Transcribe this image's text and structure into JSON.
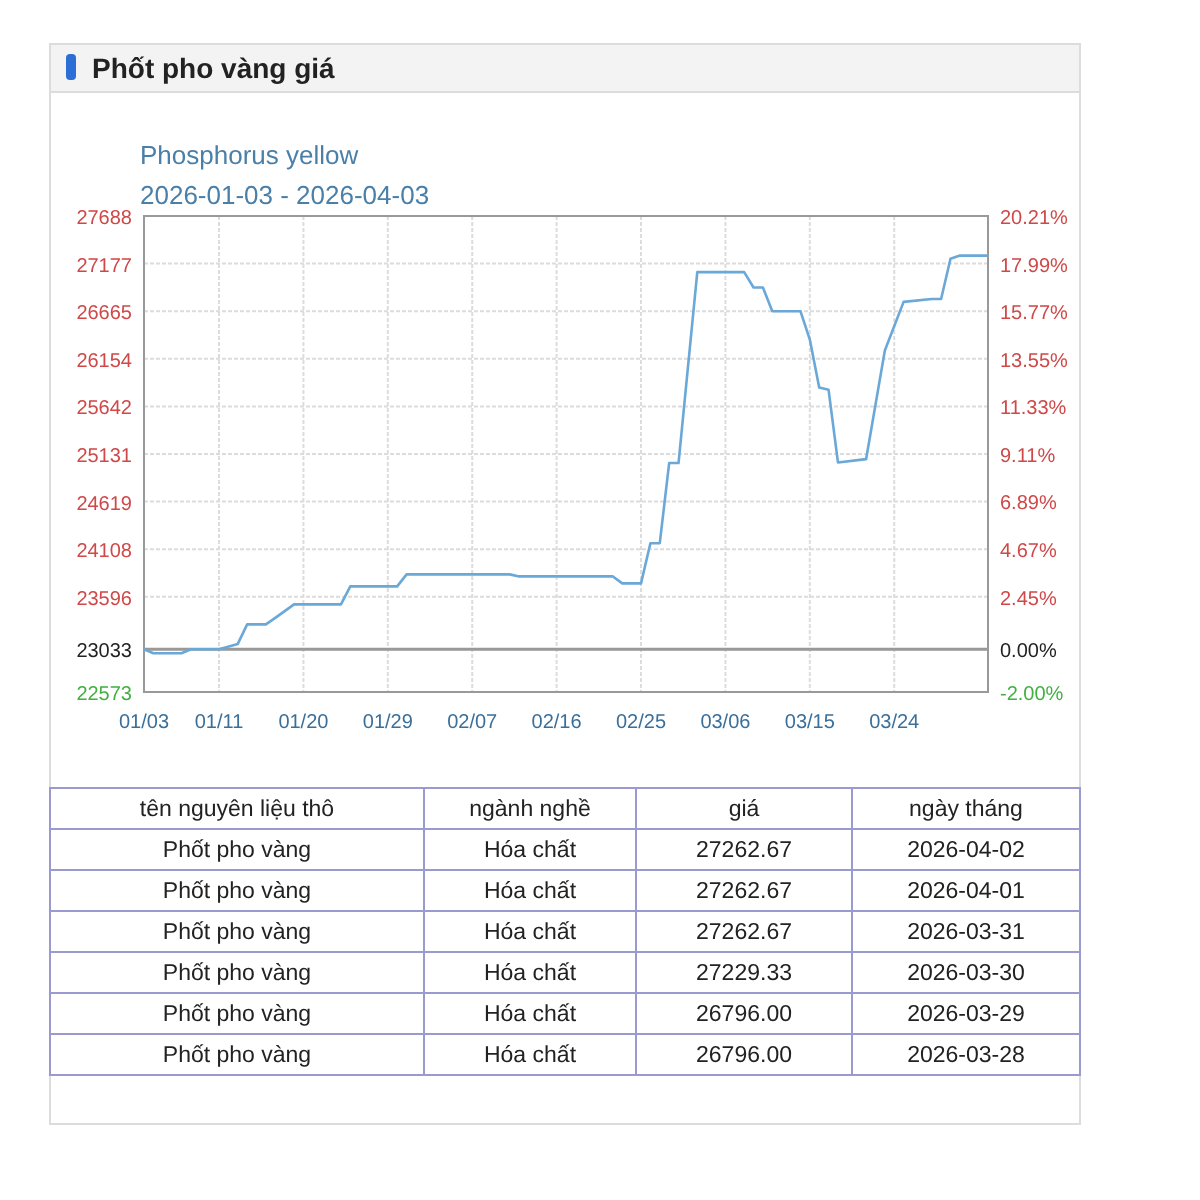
{
  "chart_data": {
    "type": "line",
    "title": "Phốt pho vàng giá",
    "subtitle": "Phosphorus yellow",
    "annotations": [
      "2026-01-03 - 2026-04-03",
      "tên nguyên liệu thô",
      "ngành nghề",
      "giá",
      "ngày tháng",
      "Phốt pho vàng",
      "Hóa chất",
      "27262.67",
      "2026-04-02",
      "Phốt pho vàng",
      "Hóa chất",
      "27262.67",
      "2026-04-01",
      "Phốt pho vàng",
      "Hóa chất",
      "27262.67",
      "2026-03-31",
      "Phốt pho vàng",
      "Hóa chất",
      "27229.33",
      "2026-03-30",
      "Phốt pho vàng",
      "Hóa chất",
      "26796.00",
      "2026-03-29",
      "Phốt pho vàng",
      "Hóa chất",
      "26796.00",
      "2026-03-28"
    ],
    "series": [
      {
        "color": "#6aa8d8",
        "x": [
          "2026-01-03",
          "2026-01-04",
          "2026-01-07",
          "2026-01-08",
          "2026-01-11",
          "2026-01-13",
          "2026-01-14",
          "2026-01-16",
          "2026-01-17",
          "2026-01-19",
          "2026-01-24",
          "2026-01-25",
          "2026-01-30",
          "2026-01-31",
          "2026-02-11",
          "2026-02-12",
          "2026-02-22",
          "2026-02-23",
          "2026-02-25",
          "2026-02-26",
          "2026-02-27",
          "2026-02-28",
          "2026-03-01",
          "2026-03-03",
          "2026-03-08",
          "2026-03-09",
          "2026-03-10",
          "2026-03-11",
          "2026-03-14",
          "2026-03-15",
          "2026-03-16",
          "2026-03-17",
          "2026-03-18",
          "2026-03-21",
          "2026-03-23",
          "2026-03-25",
          "2026-03-28",
          "2026-03-29",
          "2026-03-30",
          "2026-03-31",
          "2026-04-01",
          "2026-04-02",
          "2026-04-03"
        ],
        "values": [
          23033,
          22990,
          22990,
          23033,
          23033,
          23090,
          23300,
          23300,
          23370,
          23515,
          23515,
          23708,
          23708,
          23837,
          23837,
          23815,
          23815,
          23740,
          23740,
          24172,
          24172,
          25033,
          25033,
          27085,
          27085,
          26920,
          26920,
          26665,
          26665,
          26360,
          25845,
          25820,
          25040,
          25075,
          26243,
          26765,
          26796,
          26796,
          27229.33,
          27262.67,
          27262.67,
          27262.67,
          27262.67
        ]
      }
    ],
    "xlim": [
      "2026-01-03",
      "2026-04-03"
    ],
    "xticks": [
      {
        "value": "2026-01-03",
        "label": "01/03"
      },
      {
        "value": "2026-01-11",
        "label": "01/11"
      },
      {
        "value": "2026-01-20",
        "label": "01/20"
      },
      {
        "value": "2026-01-29",
        "label": "01/29"
      },
      {
        "value": "2026-02-07",
        "label": "02/07"
      },
      {
        "value": "2026-02-16",
        "label": "02/16"
      },
      {
        "value": "2026-02-25",
        "label": "02/25"
      },
      {
        "value": "2026-03-06",
        "label": "03/06"
      },
      {
        "value": "2026-03-15",
        "label": "03/15"
      },
      {
        "value": "2026-03-24",
        "label": "03/24"
      }
    ],
    "ylim": [
      22573,
      27688
    ],
    "yticks": [
      22573,
      23033,
      23596,
      24108,
      24619,
      25131,
      25642,
      26154,
      26665,
      27177,
      27688
    ],
    "y2lim": [
      -2.0,
      20.21
    ],
    "y2ticks": [
      {
        "value": -2.0,
        "label": "-2.00%"
      },
      {
        "value": 0,
        "label": "0.00%"
      },
      {
        "value": 2.45,
        "label": "2.45%"
      },
      {
        "value": 4.67,
        "label": "4.67%"
      },
      {
        "value": 6.89,
        "label": "6.89%"
      },
      {
        "value": 9.11,
        "label": "9.11%"
      },
      {
        "value": 11.33,
        "label": "11.33%"
      },
      {
        "value": 13.55,
        "label": "13.55%"
      },
      {
        "value": 15.77,
        "label": "15.77%"
      },
      {
        "value": 17.99,
        "label": "17.99%"
      },
      {
        "value": 20.21,
        "label": "20.21%"
      }
    ],
    "ref_lines": [
      {
        "axis": "y",
        "value": 23033,
        "color": "#999999"
      }
    ],
    "grid": true,
    "line_style": "solid"
  }
}
